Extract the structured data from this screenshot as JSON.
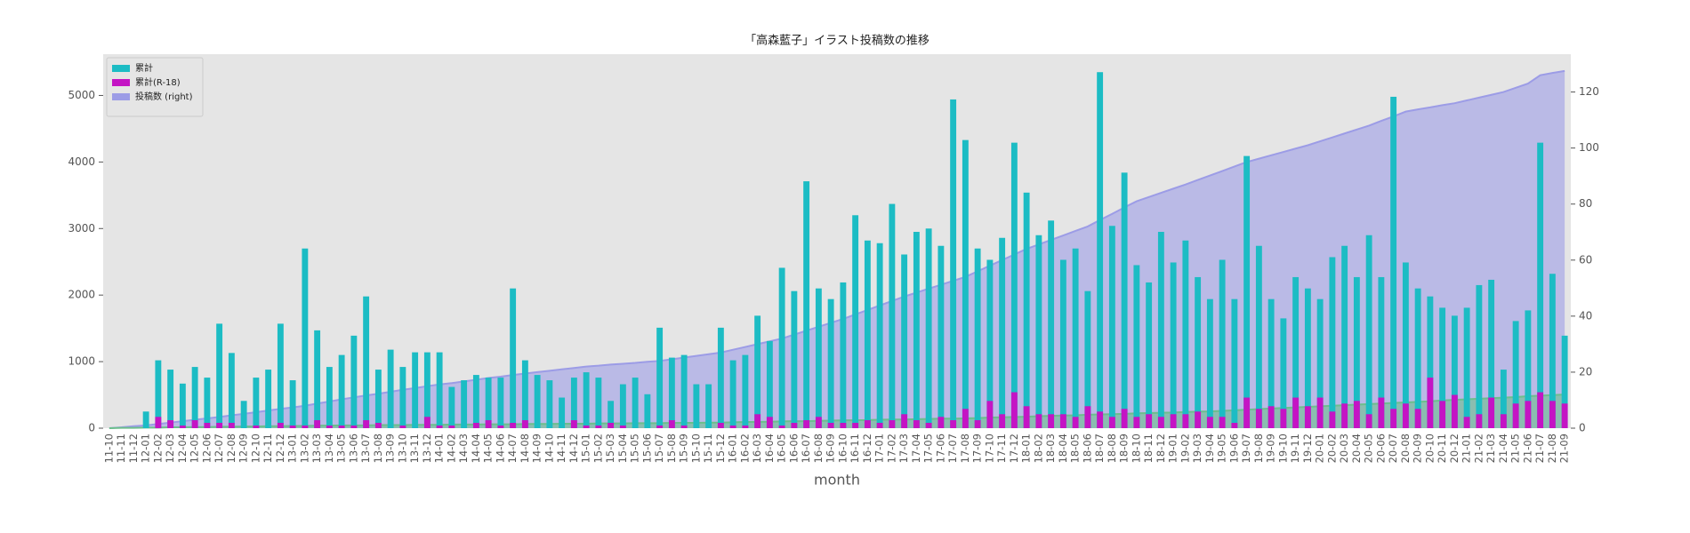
{
  "chart_data": {
    "type": "bar",
    "title": "「高森藍子」イラスト投稿数の推移",
    "x_label": "month",
    "categories": [
      "11-10",
      "11-11",
      "11-12",
      "12-01",
      "12-02",
      "12-03",
      "12-04",
      "12-05",
      "12-06",
      "12-07",
      "12-08",
      "12-09",
      "12-10",
      "12-11",
      "12-12",
      "13-01",
      "13-02",
      "13-03",
      "13-04",
      "13-05",
      "13-06",
      "13-07",
      "13-08",
      "13-09",
      "13-10",
      "13-11",
      "13-12",
      "14-01",
      "14-02",
      "14-03",
      "14-04",
      "14-05",
      "14-06",
      "14-07",
      "14-08",
      "14-09",
      "14-10",
      "14-11",
      "14-12",
      "15-01",
      "15-02",
      "15-03",
      "15-04",
      "15-05",
      "15-06",
      "15-07",
      "15-08",
      "15-09",
      "15-10",
      "15-11",
      "15-12",
      "16-01",
      "16-02",
      "16-03",
      "16-04",
      "16-05",
      "16-06",
      "16-07",
      "16-08",
      "16-09",
      "16-10",
      "16-11",
      "16-12",
      "17-01",
      "17-02",
      "17-03",
      "17-04",
      "17-05",
      "17-06",
      "17-07",
      "17-08",
      "17-09",
      "17-10",
      "17-11",
      "17-12",
      "18-01",
      "18-02",
      "18-03",
      "18-04",
      "18-05",
      "18-06",
      "18-07",
      "18-08",
      "18-09",
      "18-10",
      "18-11",
      "18-12",
      "19-01",
      "19-02",
      "19-03",
      "19-04",
      "19-05",
      "19-06",
      "19-07",
      "19-08",
      "19-09",
      "19-10",
      "19-11",
      "19-12",
      "20-01",
      "20-02",
      "20-03",
      "20-04",
      "20-05",
      "20-06",
      "20-07",
      "20-08",
      "20-09",
      "20-10",
      "20-11",
      "20-12",
      "21-01",
      "21-02",
      "21-03",
      "21-04",
      "21-05",
      "21-06",
      "21-07",
      "21-08",
      "21-09"
    ],
    "series": [
      {
        "name": "累計",
        "type": "bar",
        "color": "#1cbcc4",
        "values": [
          0,
          0,
          0,
          250,
          1020,
          880,
          670,
          920,
          760,
          1570,
          1130,
          410,
          760,
          880,
          1570,
          720,
          2700,
          1470,
          920,
          1100,
          1390,
          1980,
          880,
          1180,
          920,
          1140,
          1140,
          1140,
          620,
          720,
          800,
          760,
          760,
          2100,
          1020,
          800,
          720,
          460,
          760,
          840,
          760,
          410,
          660,
          760,
          510,
          1510,
          1060,
          1100,
          660,
          660,
          1510,
          1020,
          1100,
          1690,
          1310,
          2410,
          2060,
          3710,
          2100,
          1940,
          2190,
          3200,
          2820,
          2780,
          3370,
          2610,
          2950,
          3000,
          2740,
          4940,
          4330,
          2700,
          2530,
          2860,
          4290,
          3540,
          2900,
          3120,
          2530,
          2700,
          2060,
          5350,
          3040,
          3840,
          2450,
          2190,
          2950,
          2490,
          2820,
          2270,
          1940,
          2530,
          1940,
          4090,
          2740,
          1940,
          1650,
          2270,
          2100,
          1940,
          2570,
          2740,
          2270,
          2900,
          2270,
          4980,
          2490,
          2100,
          1980,
          1810,
          1690,
          1810,
          2150,
          2230,
          880,
          1610,
          1770,
          4290,
          2320,
          1390
        ]
      },
      {
        "name": "累計(R-18)",
        "type": "bar",
        "color": "#c414c4",
        "values": [
          0,
          0,
          0,
          0,
          170,
          120,
          40,
          120,
          80,
          80,
          80,
          0,
          40,
          0,
          80,
          40,
          40,
          120,
          40,
          40,
          40,
          120,
          80,
          0,
          40,
          0,
          170,
          40,
          40,
          0,
          80,
          120,
          40,
          80,
          120,
          0,
          0,
          0,
          120,
          40,
          40,
          80,
          40,
          0,
          0,
          40,
          120,
          40,
          0,
          0,
          80,
          40,
          40,
          210,
          170,
          40,
          80,
          120,
          170,
          80,
          80,
          80,
          120,
          80,
          120,
          210,
          120,
          80,
          170,
          120,
          290,
          120,
          410,
          210,
          540,
          330,
          210,
          210,
          210,
          170,
          330,
          250,
          170,
          290,
          170,
          210,
          170,
          210,
          210,
          250,
          170,
          170,
          80,
          460,
          290,
          330,
          290,
          460,
          330,
          460,
          250,
          370,
          410,
          210,
          460,
          290,
          370,
          290,
          760,
          410,
          500,
          170,
          210,
          460,
          210,
          370,
          410,
          540,
          410,
          370
        ]
      },
      {
        "name": "投稿数 (right)",
        "type": "area",
        "axis": "y2",
        "color": "#9c9ce6",
        "values": [
          0,
          0.3,
          0.7,
          1,
          1.5,
          2,
          2.5,
          3,
          3.5,
          4,
          4.6,
          5.1,
          5.7,
          6.3,
          6.9,
          7.4,
          8,
          8.8,
          9.5,
          10.3,
          11,
          11.7,
          12.3,
          13,
          13.7,
          14.3,
          15,
          15.6,
          16.1,
          16.7,
          17.3,
          17.9,
          18.4,
          19,
          19.5,
          20,
          20.5,
          21,
          21.5,
          22,
          22.3,
          22.7,
          23,
          23.3,
          23.7,
          24,
          24.6,
          25.2,
          25.8,
          26.4,
          27,
          28,
          29,
          30,
          31,
          32,
          33.4,
          34.8,
          36.2,
          37.6,
          39,
          40.6,
          42.2,
          43.8,
          45.4,
          47,
          48.4,
          49.8,
          51.2,
          52.6,
          54,
          56,
          58,
          60,
          62,
          64,
          65.6,
          67.2,
          68.8,
          70.4,
          72,
          74.3,
          76.5,
          78.8,
          81,
          82.5,
          84,
          85.5,
          87,
          88.6,
          90.2,
          91.8,
          93.4,
          95,
          96.2,
          97.4,
          98.6,
          99.8,
          101,
          102.4,
          103.8,
          105.2,
          106.6,
          108,
          109.7,
          111.3,
          113,
          113.8,
          114.5,
          115.3,
          116,
          117,
          118,
          119,
          120,
          121.5,
          123,
          126,
          126.8,
          127.5
        ]
      },
      {
        "type": "area",
        "axis": "y2",
        "color": "#6cbf8c",
        "values": [
          0,
          0.1,
          0.1,
          0.2,
          0.2,
          0.3,
          0.3,
          0.4,
          0.4,
          0.5,
          0.5,
          0.6,
          0.6,
          0.7,
          0.7,
          0.8,
          0.8,
          0.9,
          0.9,
          1.0,
          1.0,
          1.0,
          1.1,
          1.1,
          1.1,
          1.2,
          1.2,
          1.2,
          1.3,
          1.3,
          1.3,
          1.4,
          1.4,
          1.4,
          1.5,
          1.5,
          1.5,
          1.6,
          1.6,
          1.6,
          1.7,
          1.7,
          1.7,
          1.8,
          1.8,
          1.8,
          1.9,
          1.9,
          1.9,
          2.0,
          2.0,
          2.1,
          2.2,
          2.2,
          2.3,
          2.4,
          2.5,
          2.5,
          2.6,
          2.7,
          2.8,
          2.8,
          2.9,
          3.0,
          3.1,
          3.1,
          3.2,
          3.3,
          3.4,
          3.4,
          3.5,
          3.6,
          3.8,
          3.9,
          4.0,
          4.1,
          4.3,
          4.4,
          4.5,
          4.6,
          4.8,
          4.9,
          5.0,
          5.1,
          5.3,
          5.4,
          5.5,
          5.6,
          5.8,
          5.9,
          6.0,
          6.2,
          6.4,
          6.6,
          6.8,
          7.0,
          7.2,
          7.4,
          7.6,
          7.8,
          8.0,
          8.2,
          8.4,
          8.6,
          8.8,
          9.0,
          9.2,
          9.4,
          9.6,
          9.9,
          10.1,
          10.3,
          10.5,
          10.7,
          10.9,
          11.1,
          11.4,
          11.6,
          11.8,
          12.0
        ]
      }
    ],
    "ylim": [
      0,
      5620
    ],
    "yticks": [
      0,
      1000,
      2000,
      3000,
      4000,
      5000
    ],
    "y2lim": [
      0,
      133.5
    ],
    "y2ticks": [
      0,
      20,
      40,
      60,
      80,
      100,
      120
    ],
    "grid": false,
    "legend": "upper left"
  }
}
